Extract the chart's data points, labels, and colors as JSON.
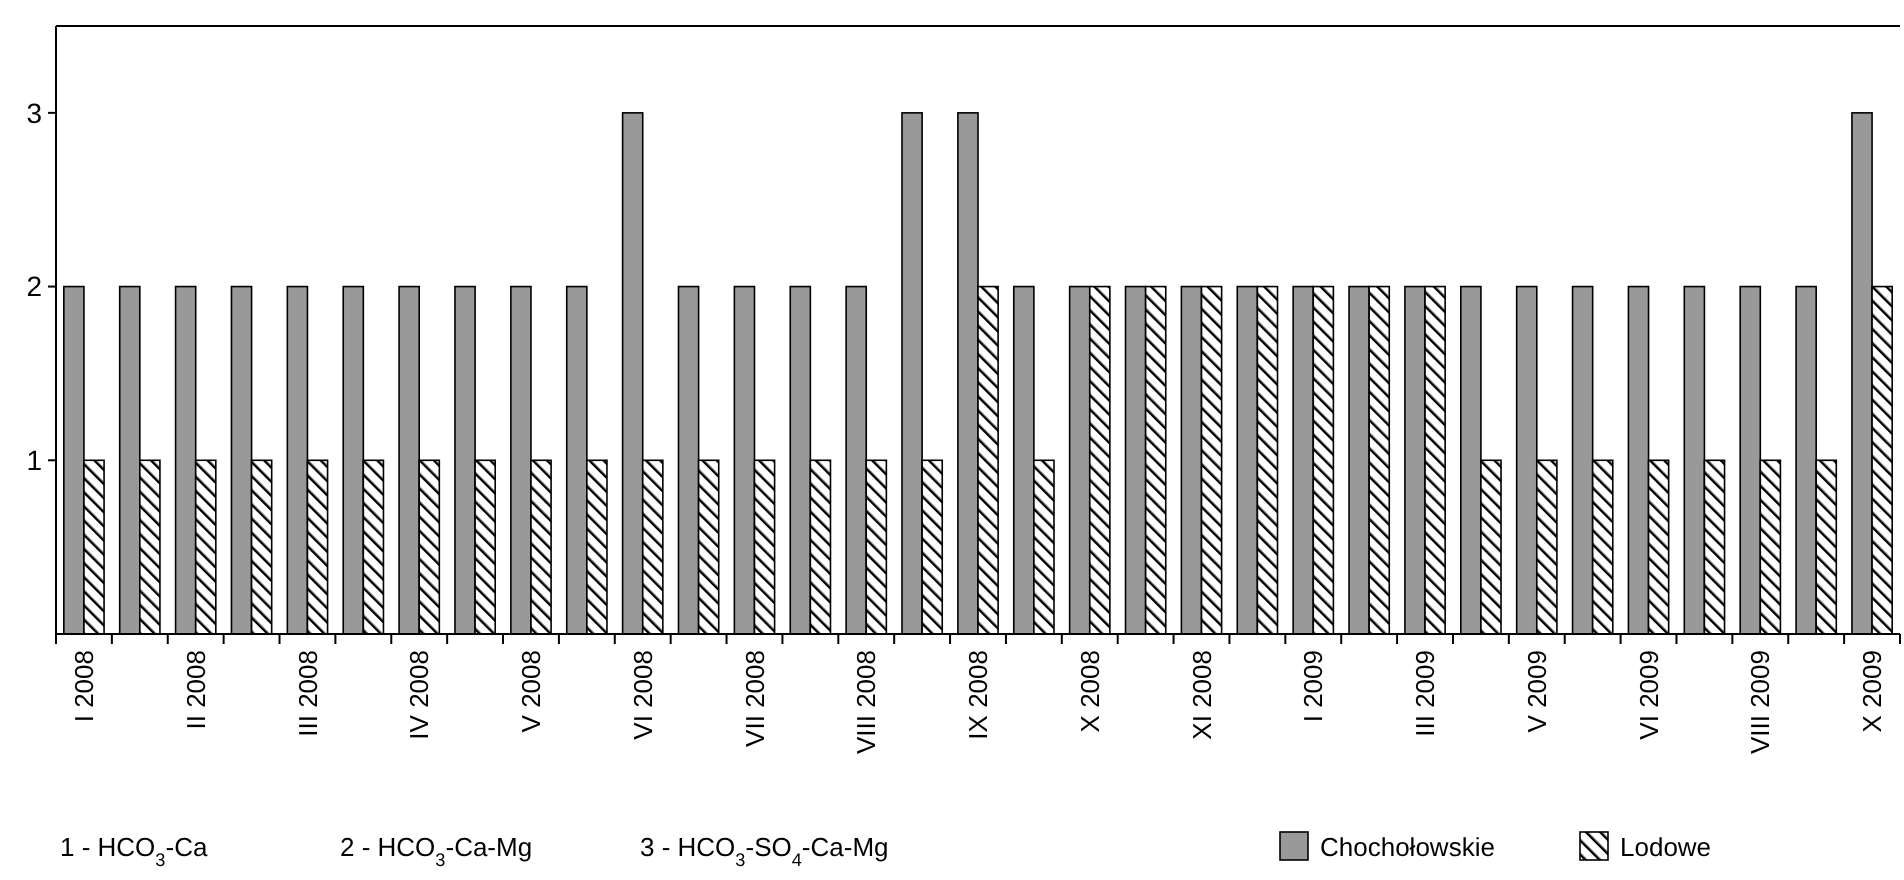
{
  "chart_data": {
    "type": "bar",
    "categories": [
      "I 2008",
      null,
      "II 2008",
      null,
      "III 2008",
      null,
      "IV 2008",
      null,
      "V 2008",
      null,
      "VI 2008",
      null,
      "VII 2008",
      null,
      "VIII 2008",
      null,
      "IX 2008",
      null,
      "X 2008",
      null,
      "XI 2008",
      null,
      "I 2009",
      null,
      "III 2009",
      null,
      "V 2009",
      null,
      "VI 2009",
      null,
      "VIII 2009",
      null,
      "X 2009"
    ],
    "series": [
      {
        "name": "Chochołowskie",
        "color": "#999999",
        "values": [
          2,
          2,
          2,
          2,
          2,
          2,
          2,
          2,
          2,
          2,
          3,
          2,
          2,
          2,
          2,
          3,
          3,
          2,
          2,
          2,
          2,
          2,
          2,
          2,
          2,
          2,
          2,
          2,
          2,
          2,
          2,
          2,
          3
        ]
      },
      {
        "name": "Lodowe",
        "color": "#000000",
        "values": [
          1,
          1,
          1,
          1,
          1,
          1,
          1,
          1,
          1,
          1,
          1,
          1,
          1,
          1,
          1,
          1,
          2,
          1,
          2,
          2,
          2,
          2,
          2,
          2,
          2,
          1,
          1,
          1,
          1,
          1,
          1,
          1,
          2
        ]
      }
    ],
    "ylim": [
      0,
      3.5
    ],
    "yticks": [
      1,
      2,
      3
    ],
    "grid": false,
    "legend": "bottom",
    "annotations": [
      "1 - HCO$_{3}$-Ca",
      "2 - HCO$_{3}$-Ca-Mg",
      "3 - HCO$_{3}$-SO$_{4}$-Ca-Mg"
    ]
  }
}
